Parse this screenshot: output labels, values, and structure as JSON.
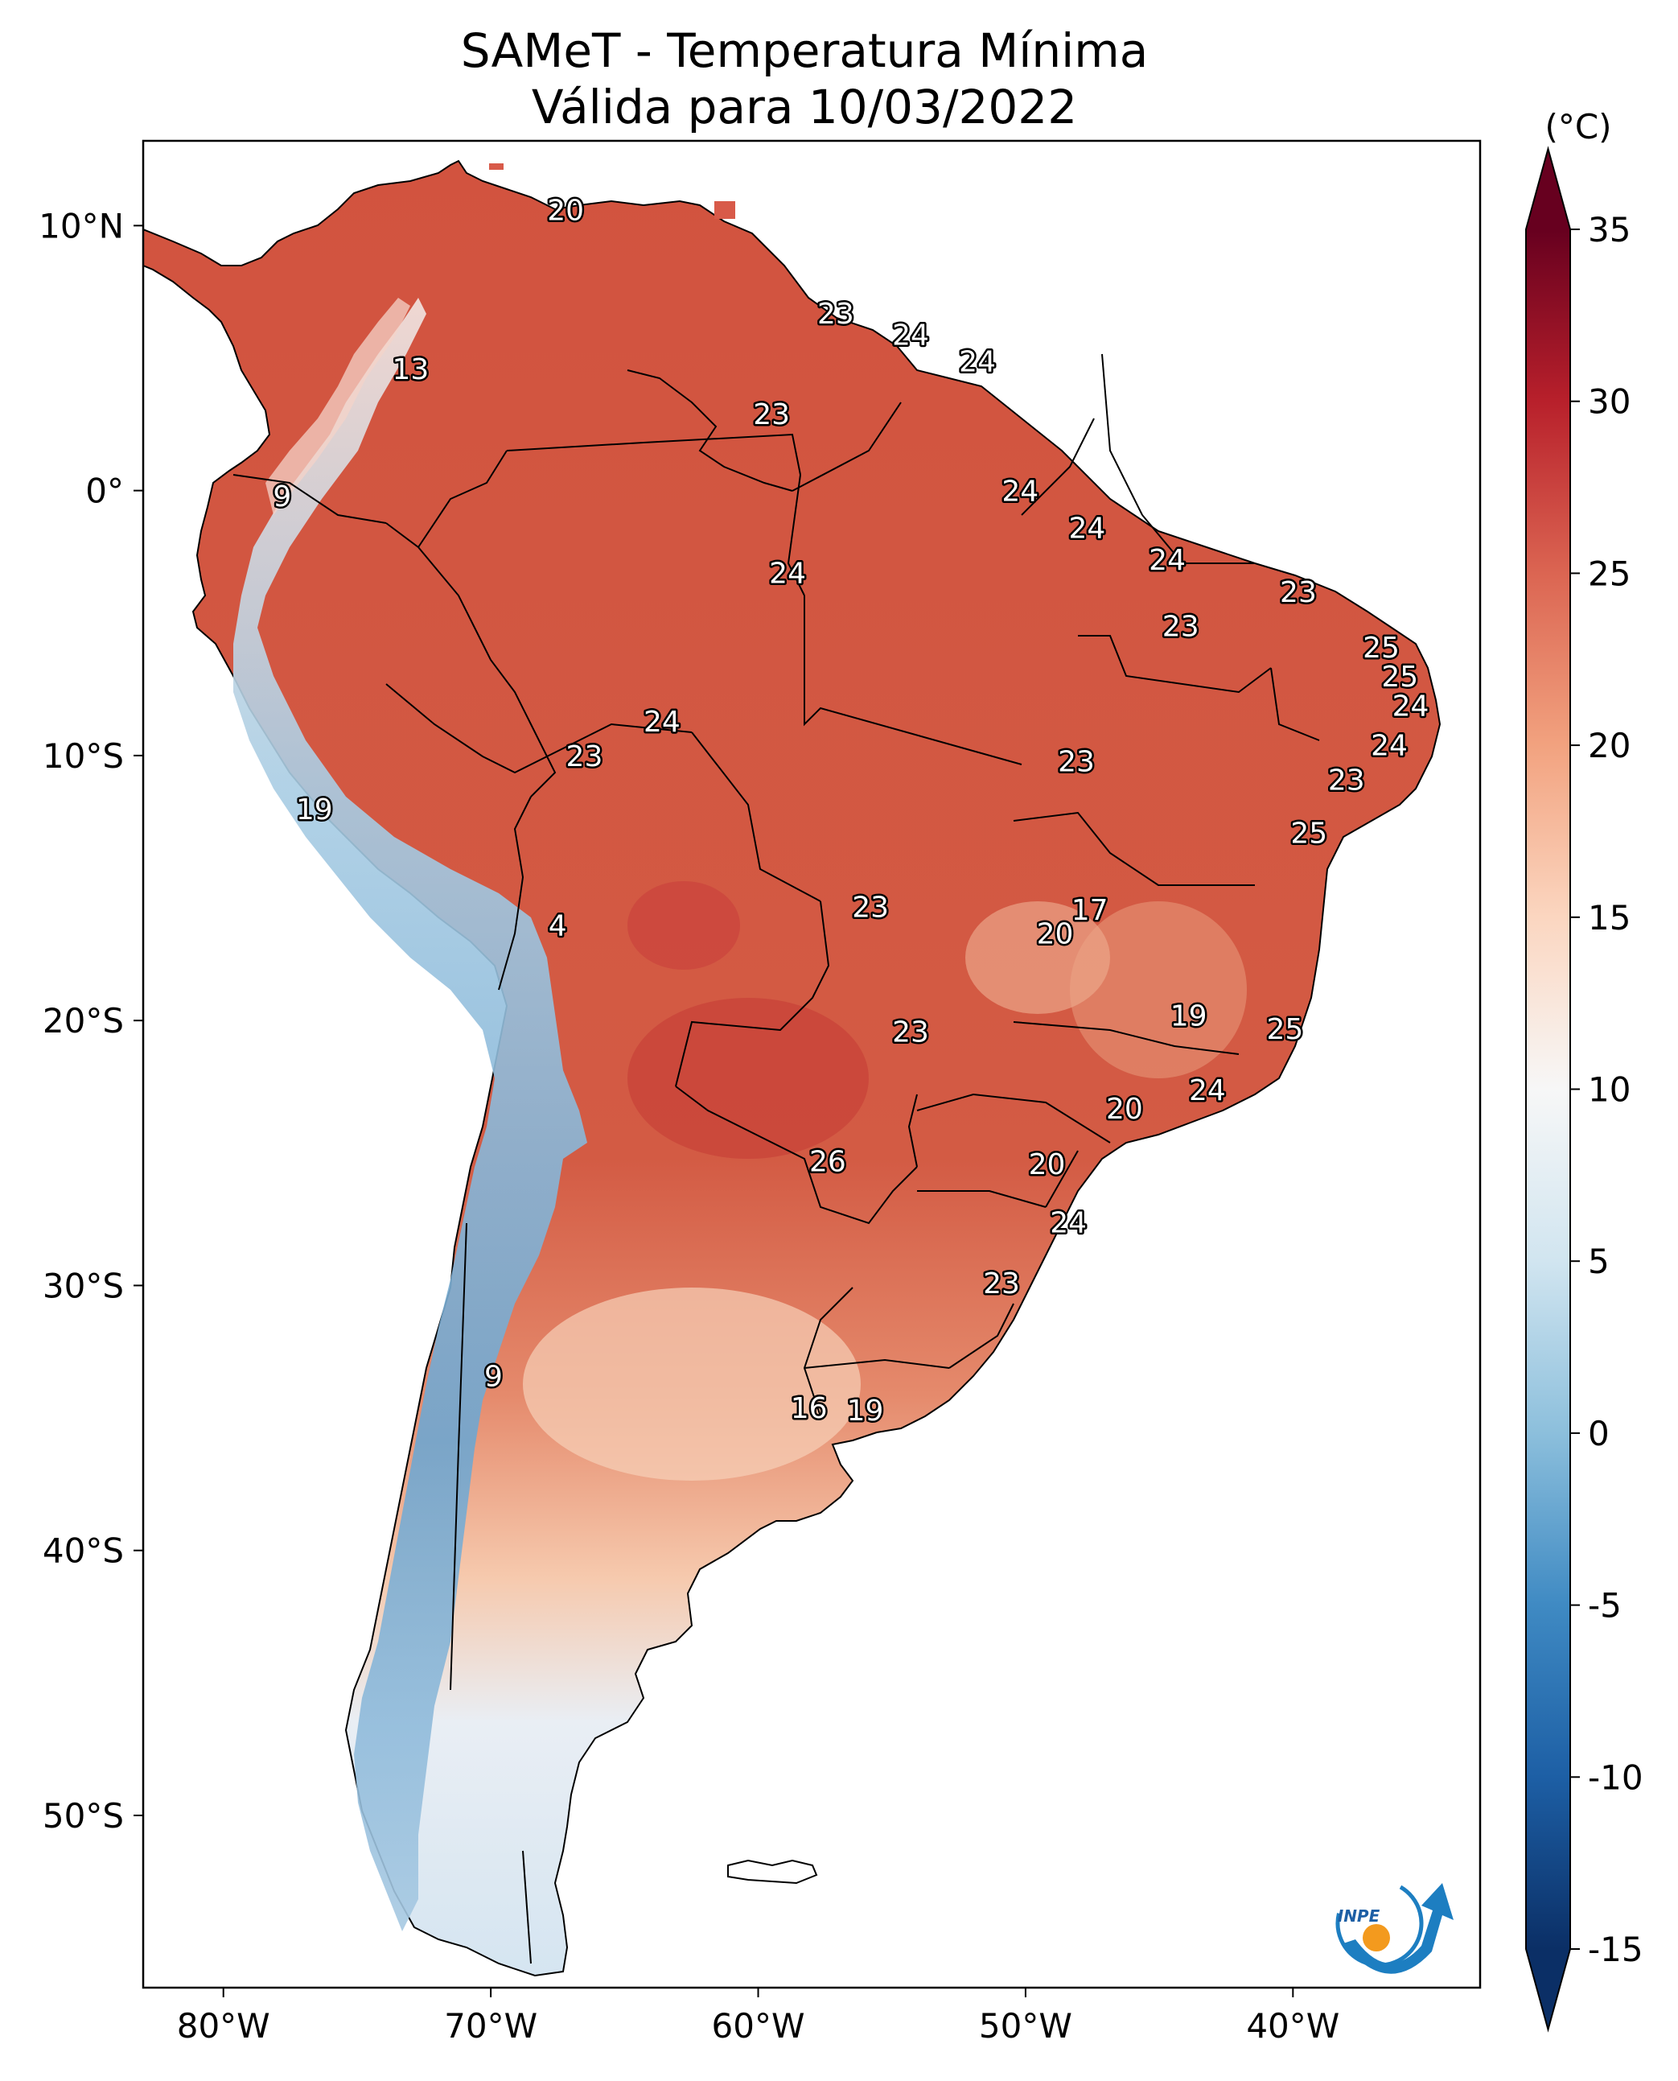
{
  "title": {
    "line1": "SAMeT - Temperatura Mínima",
    "line2": "Válida para 10/03/2022"
  },
  "axes": {
    "lon_ticks": [
      {
        "lon": -80,
        "label": "80°W"
      },
      {
        "lon": -70,
        "label": "70°W"
      },
      {
        "lon": -60,
        "label": "60°W"
      },
      {
        "lon": -50,
        "label": "50°W"
      },
      {
        "lon": -40,
        "label": "40°W"
      }
    ],
    "lat_ticks": [
      {
        "lat": 10,
        "label": "10°N"
      },
      {
        "lat": 0,
        "label": "0°"
      },
      {
        "lat": -10,
        "label": "10°S"
      },
      {
        "lat": -20,
        "label": "20°S"
      },
      {
        "lat": -30,
        "label": "30°S"
      },
      {
        "lat": -40,
        "label": "40°S"
      },
      {
        "lat": -50,
        "label": "50°S"
      }
    ],
    "lon_range": [
      -83,
      -33
    ],
    "lat_range": [
      -56.5,
      13.2
    ]
  },
  "colorbar": {
    "unit": "(°C)",
    "min": -15,
    "max": 35,
    "ticks": [
      "-15",
      "-10",
      "-5",
      "0",
      "5",
      "10",
      "15",
      "20",
      "25",
      "30",
      "35"
    ],
    "colors_low_to_high": [
      "#0b2f66",
      "#1d5fa5",
      "#3f8ac3",
      "#8cbfdc",
      "#d1e5f0",
      "#f7f7f7",
      "#fbd6c0",
      "#f2a27f",
      "#db6552",
      "#b8202b",
      "#67001f"
    ]
  },
  "logo": {
    "text": "INPE",
    "ring_color": "#1d7ec1",
    "dot_color": "#f39a1e"
  },
  "station_labels": [
    {
      "value": "20",
      "lon": -67.2,
      "lat": 10.6
    },
    {
      "value": "23",
      "lon": -57.1,
      "lat": 6.7
    },
    {
      "value": "24",
      "lon": -54.3,
      "lat": 5.9
    },
    {
      "value": "24",
      "lon": -51.8,
      "lat": 4.9
    },
    {
      "value": "13",
      "lon": -73.0,
      "lat": 4.6
    },
    {
      "value": "23",
      "lon": -59.5,
      "lat": 2.9
    },
    {
      "value": "24",
      "lon": -50.2,
      "lat": 0.0
    },
    {
      "value": "9",
      "lon": -77.8,
      "lat": -0.2
    },
    {
      "value": "24",
      "lon": -47.7,
      "lat": -1.4
    },
    {
      "value": "24",
      "lon": -44.7,
      "lat": -2.6
    },
    {
      "value": "24",
      "lon": -58.9,
      "lat": -3.1
    },
    {
      "value": "23",
      "lon": -39.8,
      "lat": -3.8
    },
    {
      "value": "23",
      "lon": -44.2,
      "lat": -5.1
    },
    {
      "value": "25",
      "lon": -36.7,
      "lat": -5.9
    },
    {
      "value": "25",
      "lon": -36.0,
      "lat": -7.0
    },
    {
      "value": "24",
      "lon": -35.6,
      "lat": -8.1
    },
    {
      "value": "24",
      "lon": -63.6,
      "lat": -8.7
    },
    {
      "value": "24",
      "lon": -36.4,
      "lat": -9.6
    },
    {
      "value": "23",
      "lon": -48.1,
      "lat": -10.2
    },
    {
      "value": "23",
      "lon": -66.5,
      "lat": -10.0
    },
    {
      "value": "23",
      "lon": -38.0,
      "lat": -10.9
    },
    {
      "value": "19",
      "lon": -76.6,
      "lat": -12.0
    },
    {
      "value": "25",
      "lon": -39.4,
      "lat": -12.9
    },
    {
      "value": "17",
      "lon": -47.6,
      "lat": -15.8
    },
    {
      "value": "23",
      "lon": -55.8,
      "lat": -15.7
    },
    {
      "value": "4",
      "lon": -67.5,
      "lat": -16.4
    },
    {
      "value": "20",
      "lon": -48.9,
      "lat": -16.7
    },
    {
      "value": "19",
      "lon": -43.9,
      "lat": -19.8
    },
    {
      "value": "25",
      "lon": -40.3,
      "lat": -20.3
    },
    {
      "value": "23",
      "lon": -54.3,
      "lat": -20.4
    },
    {
      "value": "24",
      "lon": -43.2,
      "lat": -22.6
    },
    {
      "value": "20",
      "lon": -46.3,
      "lat": -23.3
    },
    {
      "value": "20",
      "lon": -49.2,
      "lat": -25.4
    },
    {
      "value": "26",
      "lon": -57.4,
      "lat": -25.3
    },
    {
      "value": "24",
      "lon": -48.4,
      "lat": -27.6
    },
    {
      "value": "23",
      "lon": -50.9,
      "lat": -29.9
    },
    {
      "value": "9",
      "lon": -69.9,
      "lat": -33.4
    },
    {
      "value": "16",
      "lon": -58.1,
      "lat": -34.6
    },
    {
      "value": "19",
      "lon": -56.0,
      "lat": -34.7
    }
  ]
}
